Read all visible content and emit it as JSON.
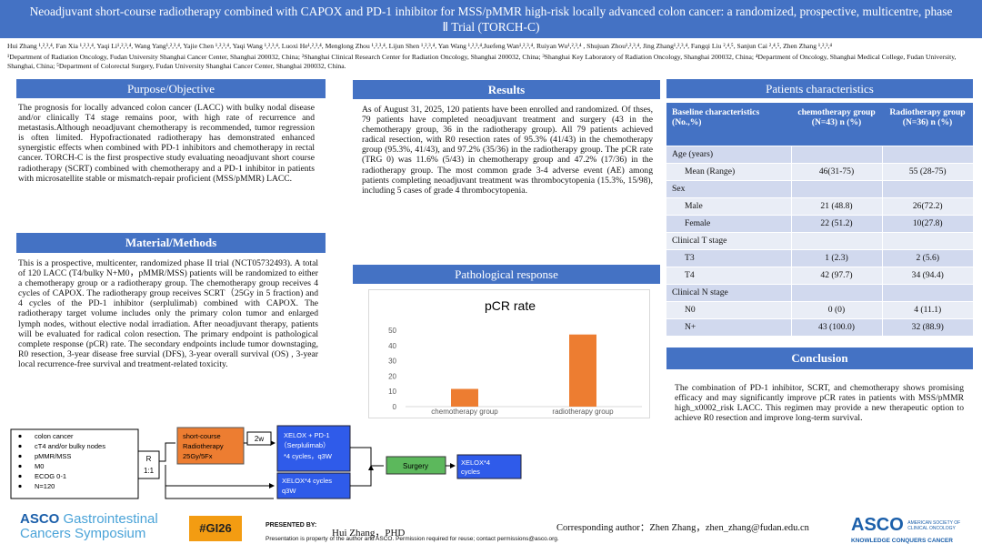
{
  "header": {
    "title": "Neoadjuvant short-course radiotherapy combined with CAPOX and PD-1 inhibitor for MSS/pMMR high-risk locally advanced colon cancer: a randomized, prospective, multicentre, phase Ⅱ Trial (TORCH-C)",
    "authors": "Hui Zhang ¹,²,³,⁴, Fan Xia ¹,²,³,⁴, Yaqi Li¹,²,³,⁴, Wang Yang¹,²,³,⁴, Yajie Chen ¹,²,³,⁴, Yaqi Wang ¹,²,³,⁴, Luoxi He¹,²,³,⁴, Menglong Zhou ¹,²,³,⁴, Lijun Shen ¹,²,³,⁴, Yan Wang ¹,²,³,⁴,Juefeng Wan¹,²,³,⁴, Ruiyan Wu¹,²,³,⁴ , Shujuan Zhou¹,²,³,⁴, Jing Zhang¹,²,³,⁴, Fangqi Liu ²,⁴,⁵, Sanjun Cai ²,⁴,⁵, Zhen Zhang ¹,²,³,⁴",
    "affiliations": "¹Department of Radiation Oncology, Fudan University Shanghai Cancer Center, Shanghai 200032, China; ²Shanghai Clinical Research Center for Radiation Oncology, Shanghai 200032, China; ³Shanghai Key Laboratory of Radiation Oncology, Shanghai 200032, China; ⁴Department of Oncology, Shanghai Medical College, Fudan University, Shanghai, China; ⁵Department of Colorectal Surgery, Fudan University Shanghai Cancer Center, Shanghai 200032, China."
  },
  "purpose": {
    "heading": "Purpose/Objective",
    "text": "The prognosis for locally advanced colon cancer (LACC) with bulky nodal disease and/or clinically T4 stage remains poor, with high rate of recurrence and metastasis.Although neoadjuvant chemotherapy is recommended, tumor regression is often limited. Hypofractionated radiotherapy has demonstrated enhanced synergistic effects when combined with PD-1 inhibitors and chemotherapy in rectal cancer. TORCH-C is the first prospective study evaluating neoadjuvant short course radiotherapy (SCRT) combined with chemotherapy and a PD-1 inhibitor in patients with microsatellite stable or mismatch-repair proficient (MSS/pMMR) LACC."
  },
  "methods": {
    "heading": "Material/Methods",
    "text": "This is a prospective, multicenter, randomized phase II trial (NCT05732493). A total of 120 LACC (T4/bulky N+M0，pMMR/MSS) patients will be randomized to either a chemotherapy group or a radiotherapy group. The chemotherapy group receives 4 cycles of CAPOX. The radiotherapy group receives SCRT（25Gy in 5 fraction) and 4 cycles of the PD-1 inhibitor (serplulimab) combined with CAPOX. The radiotherapy target volume includes only the primary colon tumor and enlarged lymph nodes, without elective nodal irradiation. After neoadjuvant therapy, patients will be evaluated for radical colon resection. The primary endpoint is pathological complete response (pCR) rate. The secondary endpoints include tumor downstaging, R0 resection, 3-year disease free survial (DFS), 3-year overall survival (OS) , 3-year local recurrence-free survival and treatment-related toxicity."
  },
  "flowchart": {
    "criteria": [
      "colon cancer",
      "cT4 and/or bulky nodes",
      "pMMR/MSS",
      "M0",
      "ECOG 0-1",
      "N=120"
    ],
    "randomization": "R",
    "ratio": "1:1",
    "scrt": [
      "short-course",
      "Radiotherapy",
      "25Gy/5Fx"
    ],
    "interval": "2w",
    "xelox_pd1": [
      "XELOX + PD-1",
      "（Serplulimab）",
      "*4 cycles，q3W"
    ],
    "xelox": [
      "XELOX*4 cycles",
      "q3W"
    ],
    "surgery": "Surgery",
    "adjuvant": [
      "XELOX*4",
      "cycles"
    ]
  },
  "results": {
    "heading": "Results",
    "text": "As of August 31, 2025, 120 patients have been enrolled and randomized. Of thses, 79 patients have completed neoadjuvant treatment and surgery (43 in the chemotherapy group, 36 in the radiotherapy group). All 79 patients achieved radical resection, with R0 resection rates of 95.3% (41/43) in the chemotherapy group (95.3%, 41/43), and 97.2% (35/36) in the radiotherapy group. The pCR rate (TRG 0) was 11.6% (5/43) in chemotherapy group and 47.2% (17/36) in the radiotherapy group. The most common grade 3-4 adverse event (AE) among patients completing neoadjuvant treatment was thrombocytopenia (15.3%, 15/98), including 5 cases of grade 4 thrombocytopenia."
  },
  "pathological_response": {
    "heading": "Pathological response"
  },
  "chart_data": {
    "type": "bar",
    "title": "pCR rate",
    "categories": [
      "chemotherapy group",
      "radiotherapy group"
    ],
    "values": [
      11.6,
      47.2
    ],
    "color": "#ed7d31",
    "ylim": [
      0,
      50
    ],
    "yticks": [
      0,
      10,
      20,
      30,
      40,
      50
    ],
    "grid": false
  },
  "patients": {
    "heading": "Patients characteristics",
    "columns": [
      "Baseline characteristics (No.,%)",
      "chemotherapy group (N=43) n (%)",
      "Radiotherapy group (N=36) n (%)"
    ],
    "rows": [
      {
        "label": "Age (years)"
      },
      {
        "label": "Mean (Range)",
        "chemo": "46(31-75)",
        "radio": "55 (28-75)"
      },
      {
        "label": "Sex"
      },
      {
        "label": "Male",
        "chemo": "21 (48.8)",
        "radio": "26(72.2)"
      },
      {
        "label": "Female",
        "chemo": "22 (51.2)",
        "radio": "10(27.8)"
      },
      {
        "label": "Clinical T stage"
      },
      {
        "label": "T3",
        "chemo": "1 (2.3)",
        "radio": "2 (5.6)"
      },
      {
        "label": "T4",
        "chemo": "42 (97.7)",
        "radio": "34 (94.4)"
      },
      {
        "label": "Clinical N stage"
      },
      {
        "label": "N0",
        "chemo": "0 (0)",
        "radio": "4 (11.1)"
      },
      {
        "label": "N+",
        "chemo": "43 (100.0)",
        "radio": "32 (88.9)"
      }
    ]
  },
  "conclusion": {
    "heading": "Conclusion",
    "text": "The combination of PD-1 inhibitor, SCRT, and chemotherapy shows promising efficacy and may significantly improve pCR rates in patients with MSS/pMMR high_x0002_risk LACC. This regimen may provide a new therapeutic option to achieve R0 resection and improve long-term survival."
  },
  "footer": {
    "meeting_logo": [
      "ASCO",
      "Gastrointestinal",
      "Cancers Symposium"
    ],
    "hashtag": "#GI26",
    "presented_by": "PRESENTED BY:",
    "presenter": "Hui Zhang，PHD",
    "notice": "Presentation is property of the author and ASCO. Permission required for reuse; contact permissions@asco.org.",
    "corresponding": "Corresponding author：Zhen Zhang，zhen_zhang@fudan.edu.cn",
    "asco_logo": [
      "ASCO",
      "AMERICAN SOCIETY OF",
      "CLINICAL ONCOLOGY",
      "KNOWLEDGE CONQUERS CANCER"
    ]
  }
}
